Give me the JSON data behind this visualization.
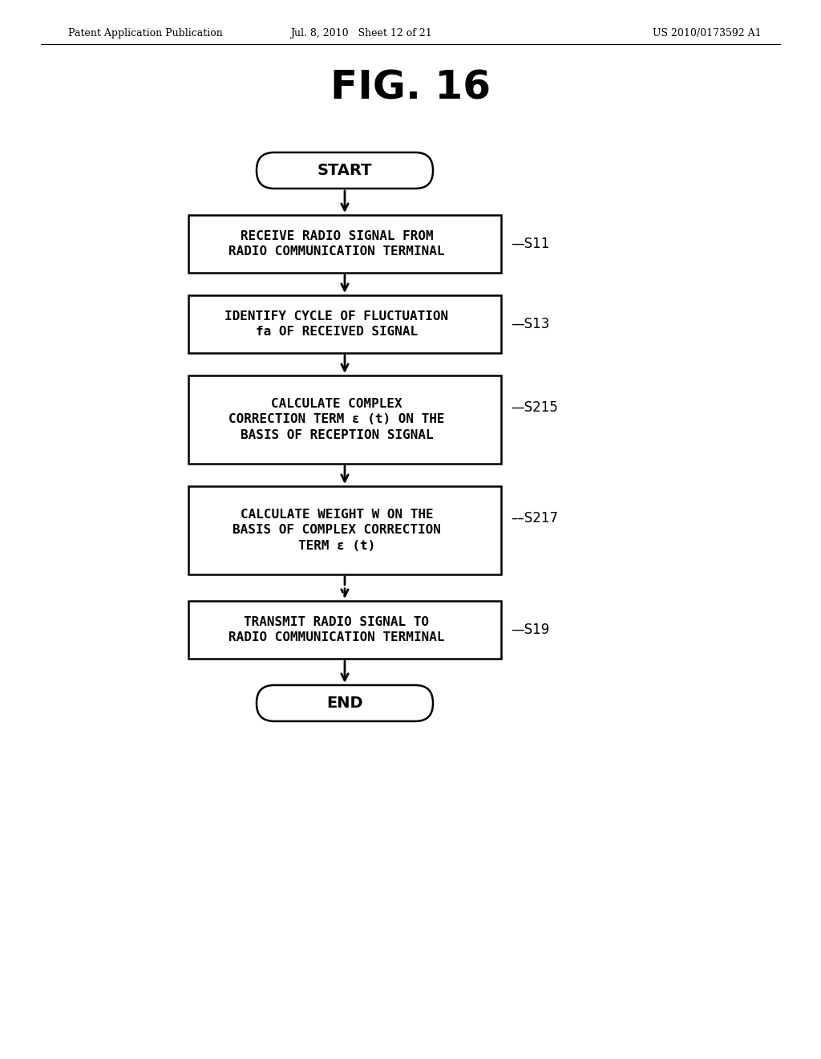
{
  "fig_title": "FIG. 16",
  "header_left": "Patent Application Publication",
  "header_mid": "Jul. 8, 2010   Sheet 12 of 21",
  "header_right": "US 2010/0173592 A1",
  "background_color": "#ffffff",
  "flowchart": {
    "start_label": "START",
    "end_label": "END",
    "boxes": [
      {
        "id": "S11",
        "label": "RECEIVE RADIO SIGNAL FROM\nRADIO COMMUNICATION TERMINAL",
        "step": "S11"
      },
      {
        "id": "S13",
        "label": "IDENTIFY CYCLE OF FLUCTUATION\nfa OF RECEIVED SIGNAL",
        "step": "S13"
      },
      {
        "id": "S215",
        "label": "CALCULATE COMPLEX\nCORRECTION TERM ε (t) ON THE\nBASIS OF RECEPTION SIGNAL",
        "step": "S215"
      },
      {
        "id": "S217",
        "label": "CALCULATE WEIGHT W ON THE\nBASIS OF COMPLEX CORRECTION\nTERM ε (t)",
        "step": "S217"
      },
      {
        "id": "S19",
        "label": "TRANSMIT RADIO SIGNAL TO\nRADIO COMMUNICATION TERMINAL",
        "step": "S19"
      }
    ]
  }
}
